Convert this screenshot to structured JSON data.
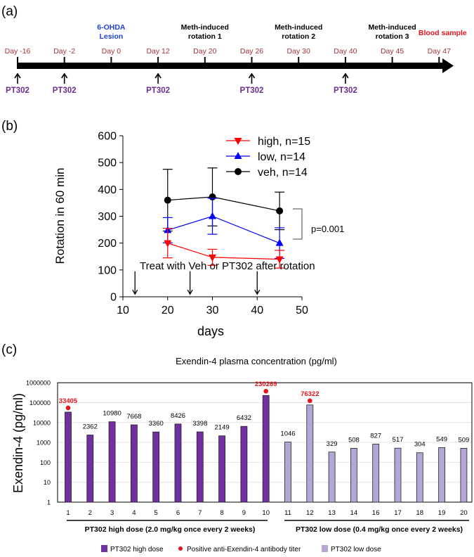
{
  "panels": {
    "a": "(a)",
    "b": "(b)",
    "c": "(c)"
  },
  "chart_data": [
    {
      "type": "timeline",
      "days": [
        "Day -16",
        "Day -2",
        "Day 0",
        "Day 12",
        "Day 20",
        "Day 26",
        "Day 30",
        "Day 40",
        "Day 45",
        "Day 47"
      ],
      "events": [
        {
          "day": "Day 0",
          "lines": [
            "6-OHDA",
            "Lesion"
          ],
          "color": "#1f3fd6"
        },
        {
          "day": "Day 20",
          "lines": [
            "Meth-induced",
            "rotation 1"
          ],
          "color": "#000000"
        },
        {
          "day": "Day 30",
          "lines": [
            "Meth-induced",
            "rotation 2"
          ],
          "color": "#000000"
        },
        {
          "day": "Day 45",
          "lines": [
            "Meth-induced",
            "rotation 3"
          ],
          "color": "#000000"
        },
        {
          "day": "Day 47",
          "lines": [
            "Blood sample"
          ],
          "color": "#e8141b"
        }
      ],
      "dosing_label": "PT302",
      "dosing_days": [
        "Day -16",
        "Day -2",
        "Day 12",
        "Day 26",
        "Day 40"
      ],
      "colors": {
        "day_label": "#a4323a",
        "dosing": "#6a2c91"
      }
    },
    {
      "type": "line",
      "xlabel": "days",
      "ylabel": "Rotation in 60 min",
      "xlim": [
        10,
        50
      ],
      "ylim": [
        0,
        600
      ],
      "xticks": [
        10,
        20,
        30,
        40,
        50
      ],
      "yticks": [
        0,
        100,
        200,
        300,
        400,
        500,
        600
      ],
      "legend_position": "top-right",
      "series": [
        {
          "name": "high, n=15",
          "color": "#ff0000",
          "marker": "triangle-down",
          "x": [
            20,
            30,
            45
          ],
          "y": [
            200,
            147,
            140
          ],
          "err": [
            55,
            30,
            33
          ]
        },
        {
          "name": "low, n=14",
          "color": "#0000ff",
          "marker": "triangle-up",
          "x": [
            20,
            30,
            45
          ],
          "y": [
            248,
            300,
            200
          ],
          "err": [
            47,
            67,
            57
          ]
        },
        {
          "name": "veh, n=14",
          "color": "#000000",
          "marker": "circle",
          "x": [
            20,
            30,
            45
          ],
          "y": [
            360,
            372,
            320
          ],
          "err": [
            115,
            108,
            70
          ]
        }
      ],
      "annotations": {
        "treatment_text": "Treat with Veh or PT302 after rotation",
        "treatment_days": [
          12.7,
          25,
          40
        ],
        "significance": "p=0.001"
      }
    },
    {
      "type": "bar",
      "title": "Exendin-4 plasma concentration (pg/ml)",
      "ylabel": "Exendin-4 (pg/ml)",
      "yscale": "log",
      "ylim": [
        1,
        1000000
      ],
      "yticks": [
        "1",
        "10",
        "100",
        "1000",
        "10000",
        "100000",
        "1000000"
      ],
      "grid": true,
      "categories": [
        "1",
        "2",
        "3",
        "4",
        "5",
        "6",
        "7",
        "8",
        "9",
        "10",
        "11",
        "12",
        "13",
        "14",
        "16",
        "17",
        "18",
        "19",
        "20"
      ],
      "values": [
        33405,
        2362,
        10980,
        7668,
        3360,
        8426,
        3398,
        2149,
        6432,
        230269,
        1046,
        76322,
        329,
        508,
        827,
        517,
        304,
        549,
        509
      ],
      "group": [
        "high",
        "high",
        "high",
        "high",
        "high",
        "high",
        "high",
        "high",
        "high",
        "high",
        "low",
        "low",
        "low",
        "low",
        "low",
        "low",
        "low",
        "low",
        "low"
      ],
      "antibody_positive": [
        "1",
        "10",
        "12"
      ],
      "group_labels": {
        "high": "PT302 high dose (2.0 mg/kg once every 2 weeks)",
        "low": "PT302 low dose (0.4 mg/kg once every 2 weeks)"
      },
      "legend": [
        {
          "label": "PT302 high dose",
          "color": "#7030a0",
          "shape": "square"
        },
        {
          "label": "Positive anti-Exendin-4 antibody titer",
          "color": "#e8141b",
          "shape": "dot"
        },
        {
          "label": "PT302 low dose",
          "color": "#b4a7d6",
          "shape": "square"
        }
      ],
      "legend_position": "bottom"
    }
  ]
}
